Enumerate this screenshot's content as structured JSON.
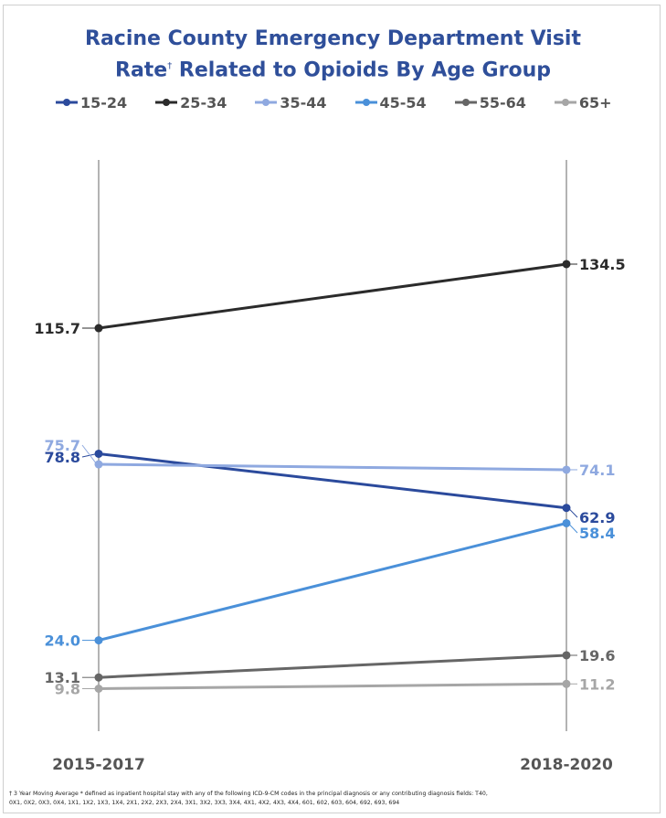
{
  "title_line1": "Racine County Emergency Department Visit",
  "title_line2_main": "Rate",
  "title_line2_sup": "†",
  "title_line2_rest": " Related to Opioids By Age Group",
  "footnote_line1": "† 3 Year Moving Average * defined as inpatient hospital stay with any of the following ICD-9-CM codes in the principal diagnosis or any contributing diagnosis fields: T40,",
  "footnote_line2": "0X1, 0X2, 0X3, 0X4, 1X1, 1X2, 1X3, 1X4, 2X1, 2X2, 2X3, 2X4, 3X1, 3X2, 3X3, 3X4, 4X1, 4X2, 4X3, 4X4, 601, 602, 603, 604, 692, 693, 694",
  "chart_data": {
    "type": "line",
    "categories": [
      "2015-2017",
      "2018-2020"
    ],
    "series": [
      {
        "name": "15-24",
        "color": "#2b4a9c",
        "values": [
          78.8,
          62.9
        ],
        "labels": [
          "78.8",
          "62.9"
        ]
      },
      {
        "name": "25-34",
        "color": "#2b2b2b",
        "values": [
          115.7,
          134.5
        ],
        "labels": [
          "115.7",
          "134.5"
        ]
      },
      {
        "name": "35-44",
        "color": "#8fa9e0",
        "values": [
          75.7,
          74.1
        ],
        "labels": [
          "75.7",
          "74.1"
        ]
      },
      {
        "name": "45-54",
        "color": "#4a90d9",
        "values": [
          24.0,
          58.4
        ],
        "labels": [
          "24.0",
          "58.4"
        ]
      },
      {
        "name": "55-64",
        "color": "#666666",
        "values": [
          13.1,
          19.6
        ],
        "labels": [
          "13.1",
          "19.6"
        ]
      },
      {
        "name": "65+",
        "color": "#a6a6a6",
        "values": [
          9.8,
          11.2
        ],
        "labels": [
          "9.8",
          "11.2"
        ]
      }
    ],
    "legend_position": "top",
    "grid": false
  }
}
